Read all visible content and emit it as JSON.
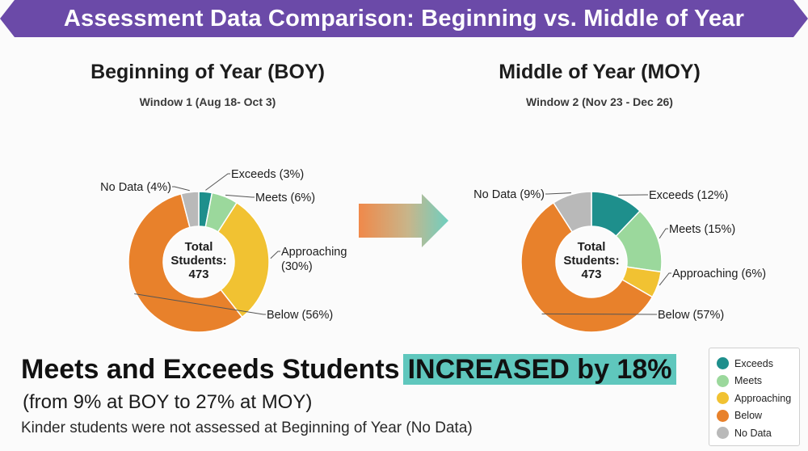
{
  "banner": {
    "title": "Assessment Data Comparison: Beginning vs. Middle of Year",
    "color": "#6b4aa8"
  },
  "colors": {
    "Exceeds": "#1e8f8c",
    "Meets": "#9bd89c",
    "Approaching": "#f1c232",
    "Below": "#e8812b",
    "No Data": "#b9b9b9"
  },
  "chart_data": [
    {
      "type": "pie",
      "title": "Beginning of Year (BOY)",
      "subtitle": "Window 1 (Aug 18- Oct 3)",
      "center_label": [
        "Total",
        "Students:",
        "473"
      ],
      "slices": [
        {
          "name": "Exceeds",
          "value": 3,
          "label": "Exceeds (3%)"
        },
        {
          "name": "Meets",
          "value": 6,
          "label": "Meets (6%)"
        },
        {
          "name": "Approaching",
          "value": 30,
          "label": "Approaching",
          "label2": "(30%)"
        },
        {
          "name": "Below",
          "value": 56,
          "label": "Below (56%)"
        },
        {
          "name": "No Data",
          "value": 4,
          "label": "No Data (4%)"
        }
      ]
    },
    {
      "type": "pie",
      "title": "Middle of Year (MOY)",
      "subtitle": "Window 2 (Nov 23 - Dec 26)",
      "center_label": [
        "Total",
        "Students:",
        "473"
      ],
      "slices": [
        {
          "name": "Exceeds",
          "value": 12,
          "label": "Exceeds (12%)"
        },
        {
          "name": "Meets",
          "value": 15,
          "label": "Meets (15%)"
        },
        {
          "name": "Approaching",
          "value": 6,
          "label": "Approaching (6%)"
        },
        {
          "name": "Below",
          "value": 57,
          "label": "Below (57%)"
        },
        {
          "name": "No Data",
          "value": 9,
          "label": "No Data (9%)"
        }
      ]
    }
  ],
  "summary": {
    "headline": "Meets and Exceeds Students",
    "highlight": "INCREASED by 18%",
    "line2": "(from 9% at BOY to 27% at MOY)",
    "line3": "Kinder students were not assessed at Beginning of Year (No Data)"
  },
  "legend": [
    "Exceeds",
    "Meets",
    "Approaching",
    "Below",
    "No Data"
  ]
}
